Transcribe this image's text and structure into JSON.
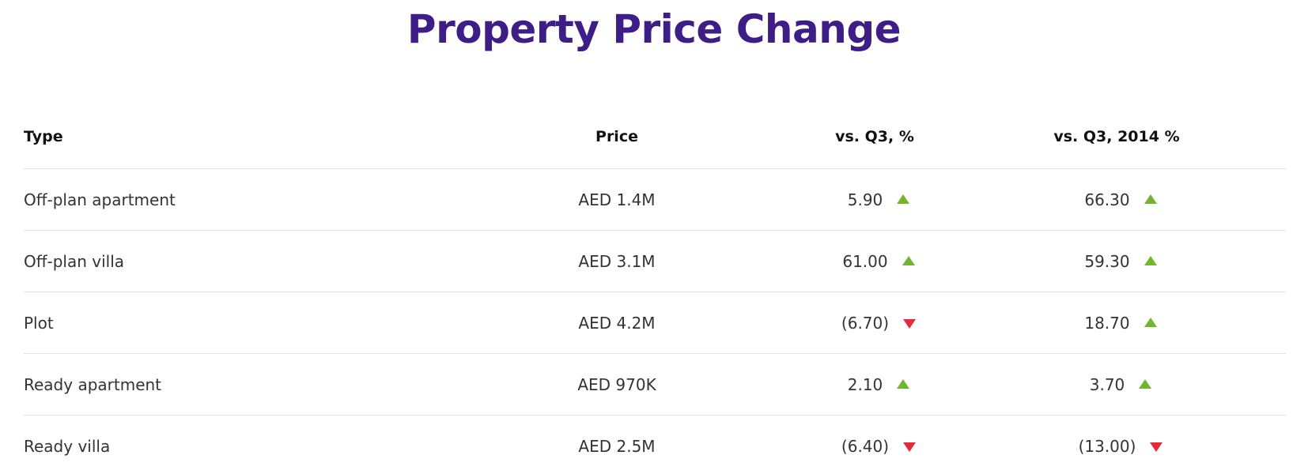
{
  "title": "Property Price Change",
  "colors": {
    "title": "#3f1d86",
    "up": "#72b62f",
    "down": "#e52b3a"
  },
  "table": {
    "headers": {
      "type": "Type",
      "price": "Price",
      "vs_q3": "vs. Q3, %",
      "vs_q3_2014": "vs. Q3, 2014 %"
    },
    "rows": [
      {
        "type": "Off-plan apartment",
        "price": "AED 1.4M",
        "vs_q3": "5.90",
        "vs_q3_trend": "up",
        "vs_q3_2014": "66.30",
        "vs_q3_2014_trend": "up"
      },
      {
        "type": "Off-plan villa",
        "price": "AED 3.1M",
        "vs_q3": "61.00",
        "vs_q3_trend": "up",
        "vs_q3_2014": "59.30",
        "vs_q3_2014_trend": "up"
      },
      {
        "type": "Plot",
        "price": "AED 4.2M",
        "vs_q3": "(6.70)",
        "vs_q3_trend": "down",
        "vs_q3_2014": "18.70",
        "vs_q3_2014_trend": "up"
      },
      {
        "type": "Ready apartment",
        "price": "AED 970K",
        "vs_q3": "2.10",
        "vs_q3_trend": "up",
        "vs_q3_2014": "3.70",
        "vs_q3_2014_trend": "up"
      },
      {
        "type": "Ready villa",
        "price": "AED 2.5M",
        "vs_q3": "(6.40)",
        "vs_q3_trend": "down",
        "vs_q3_2014": "(13.00)",
        "vs_q3_2014_trend": "down"
      }
    ]
  }
}
